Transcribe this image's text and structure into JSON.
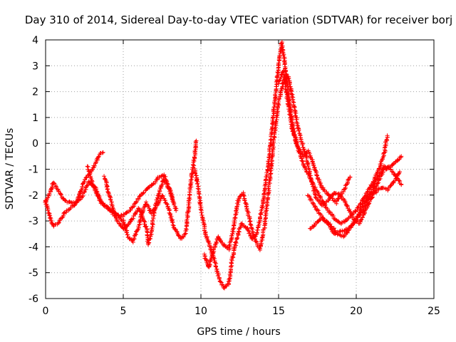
{
  "chart_data": {
    "type": "scatter",
    "title": "Day 310 of 2014, Sidereal Day-to-day VTEC variation (SDTVAR) for receiver borj",
    "xlabel": "GPS time / hours",
    "ylabel": "SDTVAR / TECUs",
    "xlim": [
      0,
      25
    ],
    "ylim": [
      -6,
      4
    ],
    "xticks": [
      "0",
      "5",
      "10",
      "15",
      "20",
      "25"
    ],
    "yticks": [
      "4",
      "3",
      "2",
      "1",
      "0",
      "-1",
      "-2",
      "-3",
      "-4",
      "-5",
      "-6"
    ],
    "grid": true,
    "marker": "+",
    "series": [
      {
        "name": "SDTVAR",
        "color": "#ff0000",
        "tracks": [
          [
            [
              0.0,
              -2.2
            ],
            [
              0.2,
              -2.7
            ],
            [
              0.5,
              -3.2
            ],
            [
              0.8,
              -3.1
            ],
            [
              1.2,
              -2.7
            ],
            [
              1.6,
              -2.5
            ],
            [
              2.0,
              -2.3
            ],
            [
              2.3,
              -1.8
            ],
            [
              2.6,
              -1.3
            ],
            [
              2.9,
              -1.1
            ],
            [
              3.2,
              -0.8
            ],
            [
              3.5,
              -0.4
            ],
            [
              3.7,
              -0.35
            ]
          ],
          [
            [
              0.0,
              -2.3
            ],
            [
              0.3,
              -1.9
            ],
            [
              0.5,
              -1.5
            ],
            [
              0.8,
              -1.8
            ],
            [
              1.2,
              -2.2
            ],
            [
              1.6,
              -2.3
            ],
            [
              2.0,
              -2.3
            ],
            [
              2.4,
              -2.0
            ],
            [
              2.8,
              -1.5
            ],
            [
              3.2,
              -1.7
            ],
            [
              3.6,
              -2.3
            ],
            [
              4.0,
              -2.5
            ],
            [
              4.5,
              -2.8
            ],
            [
              5.0,
              -2.8
            ],
            [
              5.4,
              -2.6
            ],
            [
              5.8,
              -2.3
            ],
            [
              6.1,
              -2.0
            ],
            [
              6.5,
              -1.8
            ],
            [
              6.9,
              -1.6
            ],
            [
              7.3,
              -1.3
            ],
            [
              7.6,
              -1.2
            ],
            [
              8.0,
              -1.8
            ],
            [
              8.2,
              -2.2
            ]
          ],
          [
            [
              2.7,
              -0.9
            ],
            [
              3.0,
              -1.5
            ],
            [
              3.3,
              -2.0
            ],
            [
              3.6,
              -2.3
            ],
            [
              4.0,
              -2.5
            ],
            [
              4.5,
              -2.7
            ],
            [
              5.0,
              -3.0
            ],
            [
              5.3,
              -3.6
            ],
            [
              5.6,
              -3.8
            ],
            [
              6.0,
              -3.2
            ],
            [
              6.3,
              -2.5
            ],
            [
              6.5,
              -2.3
            ],
            [
              6.8,
              -2.7
            ],
            [
              7.2,
              -2.4
            ],
            [
              7.5,
              -2.0
            ],
            [
              7.9,
              -2.5
            ],
            [
              8.3,
              -3.3
            ],
            [
              8.7,
              -3.7
            ],
            [
              9.0,
              -3.5
            ],
            [
              9.2,
              -2.5
            ],
            [
              9.4,
              -1.3
            ],
            [
              9.6,
              -0.5
            ],
            [
              9.7,
              0.1
            ]
          ],
          [
            [
              3.8,
              -1.3
            ],
            [
              4.0,
              -1.8
            ],
            [
              4.3,
              -2.4
            ],
            [
              4.6,
              -3.0
            ],
            [
              5.0,
              -3.3
            ],
            [
              5.4,
              -3.1
            ],
            [
              5.7,
              -2.8
            ],
            [
              6.0,
              -2.5
            ],
            [
              6.2,
              -2.8
            ],
            [
              6.5,
              -3.3
            ],
            [
              6.6,
              -3.9
            ],
            [
              6.8,
              -3.5
            ],
            [
              7.0,
              -2.6
            ],
            [
              7.3,
              -1.9
            ],
            [
              7.6,
              -1.4
            ],
            [
              8.0,
              -1.8
            ],
            [
              8.4,
              -2.6
            ]
          ],
          [
            [
              9.6,
              -1.0
            ],
            [
              9.8,
              -1.6
            ],
            [
              10.0,
              -2.5
            ],
            [
              10.3,
              -3.5
            ],
            [
              10.6,
              -4.0
            ],
            [
              10.9,
              -4.6
            ],
            [
              11.2,
              -5.3
            ],
            [
              11.5,
              -5.6
            ],
            [
              11.8,
              -5.4
            ],
            [
              12.0,
              -4.5
            ],
            [
              12.3,
              -3.7
            ],
            [
              12.6,
              -3.1
            ],
            [
              13.0,
              -3.3
            ],
            [
              13.3,
              -3.7
            ],
            [
              13.6,
              -3.5
            ],
            [
              14.0,
              -2.3
            ],
            [
              14.4,
              -0.5
            ],
            [
              14.7,
              1.3
            ],
            [
              15.0,
              3.0
            ],
            [
              15.2,
              3.9
            ],
            [
              15.4,
              3.1
            ],
            [
              15.7,
              1.6
            ],
            [
              16.0,
              0.4
            ],
            [
              16.3,
              -0.3
            ],
            [
              16.6,
              -0.8
            ],
            [
              17.0,
              -1.3
            ],
            [
              17.4,
              -1.8
            ],
            [
              17.8,
              -2.2
            ],
            [
              18.2,
              -2.6
            ],
            [
              18.6,
              -2.9
            ],
            [
              19.0,
              -3.1
            ],
            [
              19.5,
              -2.9
            ],
            [
              20.0,
              -2.6
            ],
            [
              20.5,
              -2.1
            ],
            [
              21.0,
              -1.6
            ],
            [
              21.4,
              -1.1
            ],
            [
              21.8,
              -0.4
            ],
            [
              22.0,
              0.3
            ]
          ],
          [
            [
              10.2,
              -4.3
            ],
            [
              10.5,
              -4.8
            ],
            [
              10.8,
              -4.2
            ],
            [
              11.1,
              -3.6
            ],
            [
              11.4,
              -3.9
            ],
            [
              11.8,
              -4.1
            ],
            [
              12.1,
              -3.3
            ],
            [
              12.4,
              -2.2
            ],
            [
              12.7,
              -1.9
            ],
            [
              13.0,
              -2.6
            ],
            [
              13.4,
              -3.6
            ],
            [
              13.8,
              -4.1
            ],
            [
              14.1,
              -3.2
            ],
            [
              14.4,
              -1.6
            ],
            [
              14.7,
              0.2
            ],
            [
              15.0,
              1.6
            ],
            [
              15.3,
              2.4
            ],
            [
              15.6,
              2.6
            ],
            [
              15.8,
              2.1
            ],
            [
              16.1,
              1.1
            ],
            [
              16.4,
              0.2
            ],
            [
              16.8,
              -0.5
            ],
            [
              17.1,
              -1.4
            ],
            [
              17.4,
              -2.1
            ],
            [
              17.8,
              -2.4
            ],
            [
              18.2,
              -2.2
            ],
            [
              18.6,
              -1.9
            ],
            [
              19.0,
              -2.0
            ],
            [
              19.4,
              -2.4
            ],
            [
              19.8,
              -2.9
            ],
            [
              20.2,
              -3.1
            ],
            [
              20.6,
              -2.6
            ],
            [
              21.0,
              -2.1
            ],
            [
              21.4,
              -1.5
            ],
            [
              21.8,
              -1.0
            ],
            [
              22.2,
              -0.9
            ],
            [
              22.6,
              -0.7
            ],
            [
              22.9,
              -0.5
            ]
          ],
          [
            [
              15.0,
              2.3
            ],
            [
              15.3,
              2.8
            ],
            [
              15.6,
              1.6
            ],
            [
              15.9,
              0.5
            ],
            [
              16.2,
              -0.1
            ],
            [
              16.6,
              -0.5
            ],
            [
              16.9,
              -0.3
            ],
            [
              17.2,
              -0.7
            ],
            [
              17.5,
              -1.3
            ],
            [
              17.8,
              -1.7
            ],
            [
              18.1,
              -1.9
            ],
            [
              18.4,
              -2.1
            ],
            [
              18.7,
              -2.3
            ],
            [
              19.0,
              -2.0
            ],
            [
              19.3,
              -1.7
            ],
            [
              19.6,
              -1.3
            ]
          ],
          [
            [
              17.0,
              -3.3
            ],
            [
              17.4,
              -3.1
            ],
            [
              17.8,
              -2.9
            ],
            [
              18.2,
              -3.1
            ],
            [
              18.6,
              -3.5
            ],
            [
              19.0,
              -3.4
            ],
            [
              19.5,
              -3.3
            ],
            [
              20.0,
              -3.0
            ],
            [
              20.5,
              -2.5
            ],
            [
              21.0,
              -1.8
            ],
            [
              21.4,
              -1.3
            ],
            [
              21.8,
              -0.9
            ],
            [
              22.2,
              -1.0
            ],
            [
              22.6,
              -1.3
            ],
            [
              22.9,
              -1.6
            ]
          ],
          [
            [
              16.9,
              -2.0
            ],
            [
              17.2,
              -2.3
            ],
            [
              17.6,
              -2.7
            ],
            [
              18.0,
              -3.0
            ],
            [
              18.4,
              -3.2
            ],
            [
              18.8,
              -3.5
            ],
            [
              19.2,
              -3.6
            ],
            [
              19.6,
              -3.3
            ],
            [
              20.0,
              -2.9
            ],
            [
              20.4,
              -2.4
            ],
            [
              20.8,
              -2.0
            ],
            [
              21.2,
              -1.9
            ],
            [
              21.6,
              -1.7
            ],
            [
              22.0,
              -1.8
            ],
            [
              22.4,
              -1.5
            ],
            [
              22.8,
              -1.1
            ]
          ]
        ]
      }
    ]
  }
}
